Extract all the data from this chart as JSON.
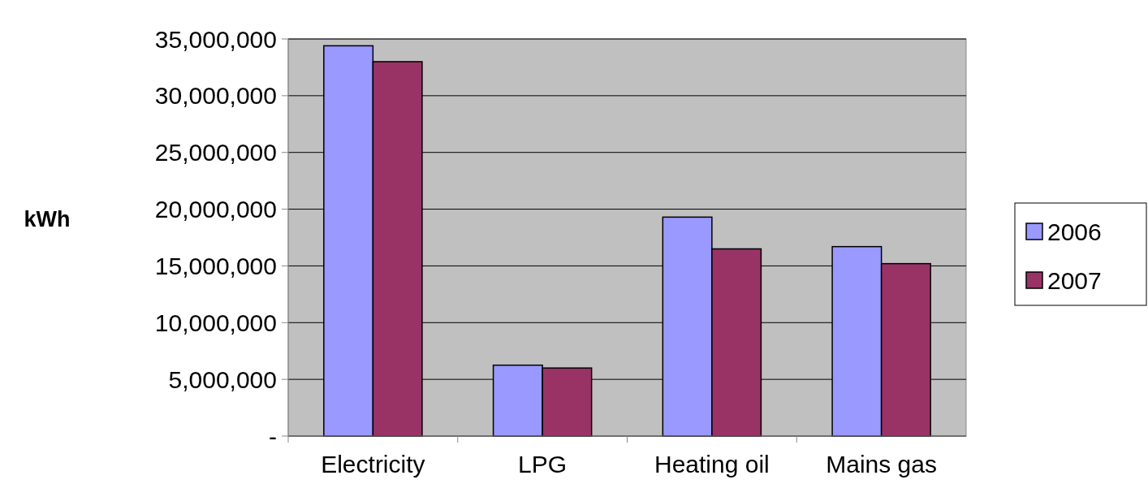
{
  "chart_data": {
    "type": "bar",
    "ylabel": "kWh",
    "categories": [
      "Electricity",
      "LPG",
      "Heating oil",
      "Mains gas"
    ],
    "series": [
      {
        "name": "2006",
        "color": "#9999ff",
        "values": [
          34400000,
          6250000,
          19300000,
          16700000
        ]
      },
      {
        "name": "2007",
        "color": "#993366",
        "values": [
          33000000,
          6000000,
          16500000,
          15200000
        ]
      }
    ],
    "ylim": [
      0,
      35000000
    ],
    "yticks": [
      {
        "value": 0,
        "label": "-"
      },
      {
        "value": 5000000,
        "label": "5,000,000"
      },
      {
        "value": 10000000,
        "label": "10,000,000"
      },
      {
        "value": 15000000,
        "label": "15,000,000"
      },
      {
        "value": 20000000,
        "label": "20,000,000"
      },
      {
        "value": 25000000,
        "label": "25,000,000"
      },
      {
        "value": 30000000,
        "label": "30,000,000"
      },
      {
        "value": 35000000,
        "label": "35,000,000"
      }
    ],
    "grid": "y",
    "legend": "right"
  }
}
